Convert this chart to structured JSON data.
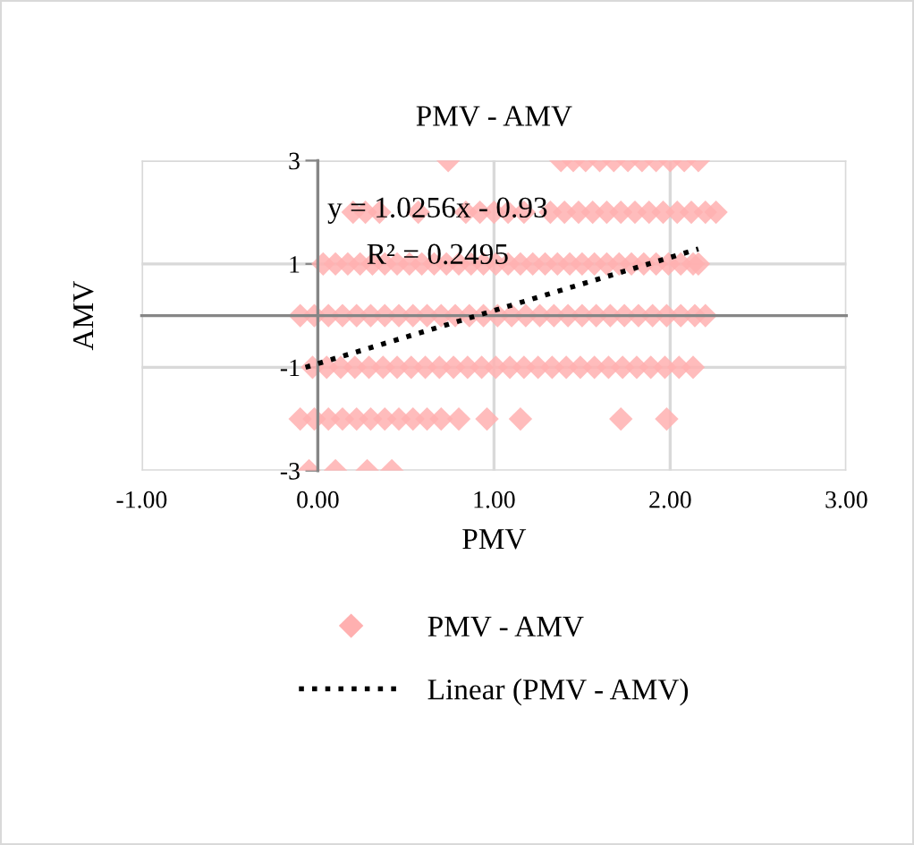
{
  "chart_data": {
    "type": "scatter",
    "title": "PMV - AMV",
    "xlabel": "PMV",
    "ylabel": "AMV",
    "annotations": [
      "y = 1.0256x - 0.93",
      "R² = 0.2495"
    ],
    "xlim": [
      -1,
      3
    ],
    "xticks": [
      {
        "value": -1,
        "label": "-1.00"
      },
      {
        "value": 0,
        "label": "0.00"
      },
      {
        "value": 1,
        "label": "1.00"
      },
      {
        "value": 2,
        "label": "2.00"
      },
      {
        "value": 3,
        "label": "3.00"
      }
    ],
    "ylim": [
      -3,
      3
    ],
    "yticks": [
      -3,
      -1,
      1,
      3
    ],
    "grid": true,
    "legend": "bottom",
    "series": [
      {
        "name": "PMV - AMV",
        "color": "#ffb0b0",
        "marker": "diamond",
        "x": [
          0.74,
          1.38,
          1.45,
          1.52,
          1.6,
          1.68,
          1.76,
          1.84,
          1.92,
          2.0,
          2.08,
          2.16,
          0.2,
          0.27,
          0.35,
          0.57,
          0.84,
          0.92,
          1.0,
          1.08,
          1.17,
          1.32,
          1.4,
          1.48,
          1.56,
          1.64,
          1.72,
          1.8,
          1.88,
          1.96,
          2.04,
          2.12,
          2.2,
          2.26,
          0.03,
          0.1,
          0.17,
          0.24,
          0.31,
          0.38,
          0.45,
          0.52,
          0.59,
          0.66,
          0.73,
          0.8,
          0.87,
          0.94,
          1.01,
          1.08,
          1.15,
          1.22,
          1.29,
          1.36,
          1.43,
          1.5,
          1.57,
          1.64,
          1.71,
          1.78,
          1.85,
          1.92,
          1.99,
          2.06,
          2.13,
          2.16,
          -0.1,
          -0.02,
          0.06,
          0.14,
          0.22,
          0.3,
          0.38,
          0.46,
          0.54,
          0.62,
          0.7,
          0.78,
          0.86,
          0.94,
          1.02,
          1.1,
          1.18,
          1.26,
          1.34,
          1.42,
          1.5,
          1.58,
          1.66,
          1.74,
          1.82,
          1.9,
          1.98,
          2.06,
          2.14,
          2.2,
          -0.03,
          0.05,
          0.13,
          0.21,
          0.29,
          0.37,
          0.45,
          0.53,
          0.61,
          0.69,
          0.77,
          0.85,
          0.93,
          1.01,
          1.09,
          1.17,
          1.25,
          1.33,
          1.41,
          1.49,
          1.57,
          1.65,
          1.73,
          1.81,
          1.89,
          1.97,
          2.05,
          2.13,
          -0.1,
          -0.02,
          0.06,
          0.14,
          0.22,
          0.3,
          0.38,
          0.46,
          0.54,
          0.62,
          0.7,
          0.8,
          0.96,
          1.15,
          1.72,
          1.98,
          -0.05,
          0.1,
          0.28,
          0.42
        ],
        "values": [
          3,
          3,
          3,
          3,
          3,
          3,
          3,
          3,
          3,
          3,
          3,
          3,
          2,
          2,
          2,
          2,
          2,
          2,
          2,
          2,
          2,
          2,
          2,
          2,
          2,
          2,
          2,
          2,
          2,
          2,
          2,
          2,
          2,
          2,
          1,
          1,
          1,
          1,
          1,
          1,
          1,
          1,
          1,
          1,
          1,
          1,
          1,
          1,
          1,
          1,
          1,
          1,
          1,
          1,
          1,
          1,
          1,
          1,
          1,
          1,
          1,
          1,
          1,
          1,
          1,
          1,
          0,
          0,
          0,
          0,
          0,
          0,
          0,
          0,
          0,
          0,
          0,
          0,
          0,
          0,
          0,
          0,
          0,
          0,
          0,
          0,
          0,
          0,
          0,
          0,
          0,
          0,
          0,
          0,
          0,
          0,
          -1,
          -1,
          -1,
          -1,
          -1,
          -1,
          -1,
          -1,
          -1,
          -1,
          -1,
          -1,
          -1,
          -1,
          -1,
          -1,
          -1,
          -1,
          -1,
          -1,
          -1,
          -1,
          -1,
          -1,
          -1,
          -1,
          -1,
          -1,
          -2,
          -2,
          -2,
          -2,
          -2,
          -2,
          -2,
          -2,
          -2,
          -2,
          -2,
          -2,
          -2,
          -2,
          -2,
          -2,
          -3,
          -3,
          -3,
          -3
        ]
      },
      {
        "name": "Linear (PMV - AMV)",
        "type": "line",
        "marker": "none",
        "line_style": "dotted",
        "color": "#000000",
        "x": [
          -0.07,
          2.16
        ],
        "values": [
          -1.0,
          1.29
        ]
      }
    ]
  }
}
